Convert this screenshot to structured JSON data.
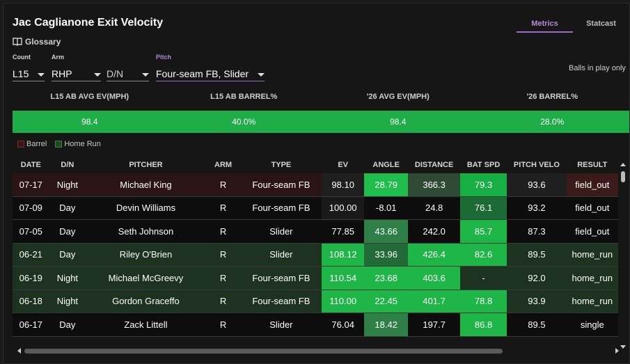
{
  "title": "Jac Caglianone Exit Velocity",
  "glossary_label": "Glossary",
  "tabs": [
    {
      "label": "Metrics",
      "active": true
    },
    {
      "label": "Statcast",
      "active": false
    }
  ],
  "filters": {
    "count": {
      "label": "Count",
      "value": "L15"
    },
    "arm": {
      "label": "Arm",
      "value": "RHP"
    },
    "dn": {
      "label": "",
      "value": "D/N"
    },
    "pitch": {
      "label": "Pitch",
      "value": "Four-seam FB, Slider"
    }
  },
  "balls_in_play_label": "Balls in play only",
  "summary": {
    "headers": [
      "L15 AB AVG EV(MPH)",
      "L15 AB BARREL%",
      "'26 AVG EV(MPH)",
      "'26 BARREL%"
    ],
    "values": [
      "98.4",
      "40.0%",
      "98.4",
      "28.0%"
    ]
  },
  "legend": {
    "barrel": "Barrel",
    "home_run": "Home Run"
  },
  "columns": [
    "DATE",
    "D/N",
    "PITCHER",
    "ARM",
    "TYPE",
    "EV",
    "ANGLE",
    "DISTANCE",
    "BAT SPD",
    "PITCH VELO",
    "RESULT"
  ],
  "rows": [
    {
      "cells": [
        "07-17",
        "Night",
        "Michael King",
        "R",
        "Four-seam FB",
        "98.10",
        "28.79",
        "366.3",
        "79.3",
        "93.6",
        "field_out"
      ],
      "kind": "barrel",
      "colors": [
        "#2a1414",
        "#2a1414",
        "#2a1414",
        "#2a1414",
        "#2a1414",
        "#1f1f1f",
        "#1fbd4c",
        "#2e4a35",
        "#17ae43",
        "#1f1f1f",
        "#3a1a1a"
      ]
    },
    {
      "cells": [
        "07-09",
        "Day",
        "Devin Williams",
        "R",
        "Four-seam FB",
        "100.00",
        "-8.01",
        "24.8",
        "76.1",
        "93.2",
        "field_out"
      ],
      "kind": "none",
      "colors": [
        "#0d0d0d",
        "#0d0d0d",
        "#0d0d0d",
        "#0d0d0d",
        "#0d0d0d",
        "#1a1a1a",
        "#0d0d0d",
        "#0d0d0d",
        "#1c6b34",
        "#0d0d0d",
        "#0d0d0d"
      ]
    },
    {
      "cells": [
        "07-05",
        "Day",
        "Seth Johnson",
        "R",
        "Slider",
        "77.85",
        "43.66",
        "242.0",
        "85.7",
        "87.3",
        "field_out"
      ],
      "kind": "none",
      "colors": [
        "#0d0d0d",
        "#0d0d0d",
        "#0d0d0d",
        "#0d0d0d",
        "#0d0d0d",
        "#0d0d0d",
        "#2f8047",
        "#0d0d0d",
        "#1cb546",
        "#0d0d0d",
        "#0d0d0d"
      ]
    },
    {
      "cells": [
        "06-21",
        "Day",
        "Riley O'Brien",
        "R",
        "Slider",
        "108.12",
        "33.96",
        "426.4",
        "82.6",
        "89.5",
        "home_run"
      ],
      "kind": "hr",
      "colors": [
        "#1e3221",
        "#1e3221",
        "#1e3221",
        "#1e3221",
        "#1e3221",
        "#1eb647",
        "#226a38",
        "#1eb647",
        "#1eb647",
        "#1e3221",
        "#1e3221"
      ]
    },
    {
      "cells": [
        "06-19",
        "Night",
        "Michael McGreevy",
        "R",
        "Four-seam FB",
        "110.54",
        "23.68",
        "403.6",
        "-",
        "92.0",
        "home_run"
      ],
      "kind": "hr",
      "colors": [
        "#1e3221",
        "#1e3221",
        "#1e3221",
        "#1e3221",
        "#1e3221",
        "#1eb647",
        "#1eb647",
        "#1eb647",
        "#1e3221",
        "#1e3221",
        "#1e3221"
      ]
    },
    {
      "cells": [
        "06-18",
        "Night",
        "Gordon Graceffo",
        "R",
        "Four-seam FB",
        "110.00",
        "22.45",
        "401.7",
        "78.8",
        "93.9",
        "home_run"
      ],
      "kind": "hr",
      "colors": [
        "#1e3221",
        "#1e3221",
        "#1e3221",
        "#1e3221",
        "#1e3221",
        "#1eb647",
        "#1eb647",
        "#1eb647",
        "#1eb647",
        "#1e3221",
        "#1e3221"
      ]
    },
    {
      "cells": [
        "06-17",
        "Day",
        "Zack Littell",
        "R",
        "Slider",
        "76.04",
        "18.42",
        "197.7",
        "86.8",
        "89.5",
        "single"
      ],
      "kind": "none",
      "colors": [
        "#0d0d0d",
        "#0d0d0d",
        "#0d0d0d",
        "#0d0d0d",
        "#0d0d0d",
        "#0d0d0d",
        "#2f8047",
        "#0d0d0d",
        "#1eb647",
        "#0d0d0d",
        "#0d0d0d"
      ]
    }
  ]
}
